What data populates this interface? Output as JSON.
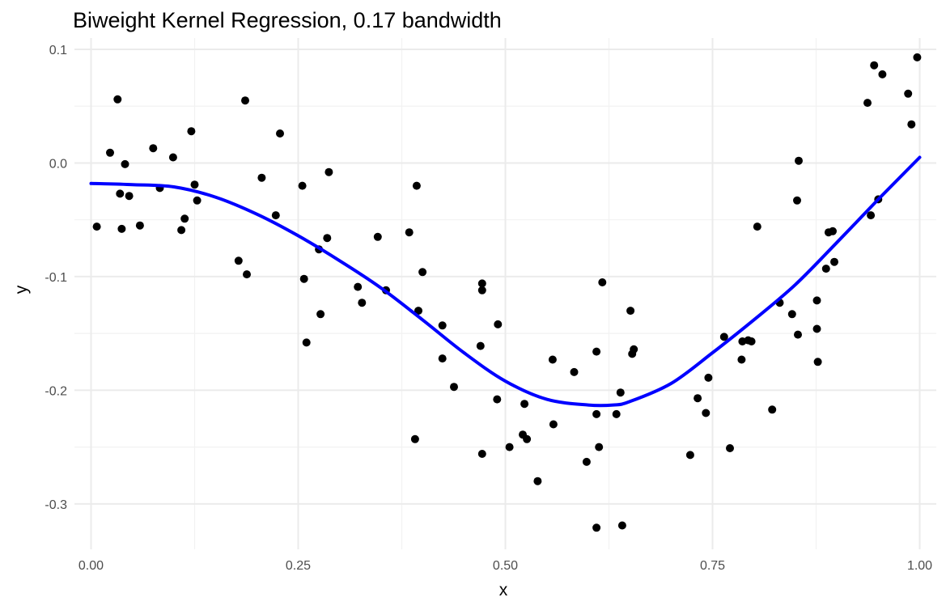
{
  "chart_data": {
    "type": "scatter",
    "title": "Biweight Kernel Regression, 0.17 bandwidth",
    "xlabel": "x",
    "ylabel": "y",
    "xlim": [
      -0.02,
      1.02
    ],
    "ylim": [
      -0.34,
      0.11
    ],
    "x_ticks": [
      0.0,
      0.25,
      0.5,
      0.75,
      1.0
    ],
    "x_tick_labels": [
      "0.00",
      "0.25",
      "0.50",
      "0.75",
      "1.00"
    ],
    "y_ticks": [
      -0.3,
      -0.2,
      -0.1,
      0.0,
      0.1
    ],
    "y_tick_labels": [
      "-0.3",
      "-0.2",
      "-0.1",
      "0.0",
      "0.1"
    ],
    "grid": true,
    "legend": "none",
    "colors": {
      "points": "#000000",
      "curve": "#0000ff",
      "grid": "#ebebeb"
    },
    "points": [
      [
        0.007,
        -0.056
      ],
      [
        0.023,
        0.009
      ],
      [
        0.032,
        0.056
      ],
      [
        0.035,
        -0.027
      ],
      [
        0.037,
        -0.058
      ],
      [
        0.041,
        -0.001
      ],
      [
        0.046,
        -0.029
      ],
      [
        0.059,
        -0.055
      ],
      [
        0.075,
        0.013
      ],
      [
        0.083,
        -0.022
      ],
      [
        0.099,
        0.005
      ],
      [
        0.109,
        -0.059
      ],
      [
        0.113,
        -0.049
      ],
      [
        0.121,
        0.028
      ],
      [
        0.125,
        -0.019
      ],
      [
        0.128,
        -0.033
      ],
      [
        0.178,
        -0.086
      ],
      [
        0.186,
        0.055
      ],
      [
        0.188,
        -0.098
      ],
      [
        0.206,
        -0.013
      ],
      [
        0.223,
        -0.046
      ],
      [
        0.228,
        0.026
      ],
      [
        0.255,
        -0.02
      ],
      [
        0.257,
        -0.102
      ],
      [
        0.26,
        -0.158
      ],
      [
        0.275,
        -0.076
      ],
      [
        0.277,
        -0.133
      ],
      [
        0.285,
        -0.066
      ],
      [
        0.287,
        -0.008
      ],
      [
        0.322,
        -0.109
      ],
      [
        0.327,
        -0.123
      ],
      [
        0.346,
        -0.065
      ],
      [
        0.356,
        -0.112
      ],
      [
        0.384,
        -0.061
      ],
      [
        0.391,
        -0.243
      ],
      [
        0.393,
        -0.02
      ],
      [
        0.395,
        -0.13
      ],
      [
        0.4,
        -0.096
      ],
      [
        0.424,
        -0.143
      ],
      [
        0.424,
        -0.172
      ],
      [
        0.438,
        -0.197
      ],
      [
        0.47,
        -0.161
      ],
      [
        0.472,
        -0.106
      ],
      [
        0.472,
        -0.112
      ],
      [
        0.472,
        -0.256
      ],
      [
        0.49,
        -0.208
      ],
      [
        0.491,
        -0.142
      ],
      [
        0.505,
        -0.25
      ],
      [
        0.521,
        -0.239
      ],
      [
        0.523,
        -0.212
      ],
      [
        0.526,
        -0.243
      ],
      [
        0.539,
        -0.28
      ],
      [
        0.557,
        -0.173
      ],
      [
        0.558,
        -0.23
      ],
      [
        0.583,
        -0.184
      ],
      [
        0.598,
        -0.263
      ],
      [
        0.61,
        -0.166
      ],
      [
        0.61,
        -0.221
      ],
      [
        0.61,
        -0.321
      ],
      [
        0.613,
        -0.25
      ],
      [
        0.617,
        -0.105
      ],
      [
        0.634,
        -0.221
      ],
      [
        0.639,
        -0.202
      ],
      [
        0.641,
        -0.319
      ],
      [
        0.651,
        -0.13
      ],
      [
        0.653,
        -0.168
      ],
      [
        0.655,
        -0.164
      ],
      [
        0.723,
        -0.257
      ],
      [
        0.732,
        -0.207
      ],
      [
        0.742,
        -0.22
      ],
      [
        0.745,
        -0.189
      ],
      [
        0.764,
        -0.153
      ],
      [
        0.771,
        -0.251
      ],
      [
        0.785,
        -0.173
      ],
      [
        0.786,
        -0.157
      ],
      [
        0.793,
        -0.156
      ],
      [
        0.797,
        -0.157
      ],
      [
        0.804,
        -0.056
      ],
      [
        0.822,
        -0.217
      ],
      [
        0.831,
        -0.123
      ],
      [
        0.846,
        -0.133
      ],
      [
        0.852,
        -0.033
      ],
      [
        0.853,
        -0.151
      ],
      [
        0.854,
        0.002
      ],
      [
        0.876,
        -0.121
      ],
      [
        0.876,
        -0.146
      ],
      [
        0.877,
        -0.175
      ],
      [
        0.887,
        -0.093
      ],
      [
        0.89,
        -0.061
      ],
      [
        0.895,
        -0.06
      ],
      [
        0.897,
        -0.087
      ],
      [
        0.937,
        0.053
      ],
      [
        0.941,
        -0.046
      ],
      [
        0.945,
        0.086
      ],
      [
        0.95,
        -0.032
      ],
      [
        0.955,
        0.078
      ],
      [
        0.986,
        0.061
      ],
      [
        0.99,
        0.034
      ],
      [
        0.997,
        0.093
      ]
    ],
    "curve": [
      [
        0.0,
        -0.018
      ],
      [
        0.05,
        -0.019
      ],
      [
        0.1,
        -0.021
      ],
      [
        0.15,
        -0.03
      ],
      [
        0.2,
        -0.045
      ],
      [
        0.25,
        -0.064
      ],
      [
        0.3,
        -0.086
      ],
      [
        0.35,
        -0.11
      ],
      [
        0.4,
        -0.138
      ],
      [
        0.45,
        -0.167
      ],
      [
        0.5,
        -0.192
      ],
      [
        0.55,
        -0.208
      ],
      [
        0.6,
        -0.213
      ],
      [
        0.63,
        -0.213
      ],
      [
        0.65,
        -0.21
      ],
      [
        0.7,
        -0.194
      ],
      [
        0.75,
        -0.167
      ],
      [
        0.8,
        -0.138
      ],
      [
        0.85,
        -0.107
      ],
      [
        0.9,
        -0.07
      ],
      [
        0.95,
        -0.032
      ],
      [
        1.0,
        0.005
      ]
    ]
  }
}
